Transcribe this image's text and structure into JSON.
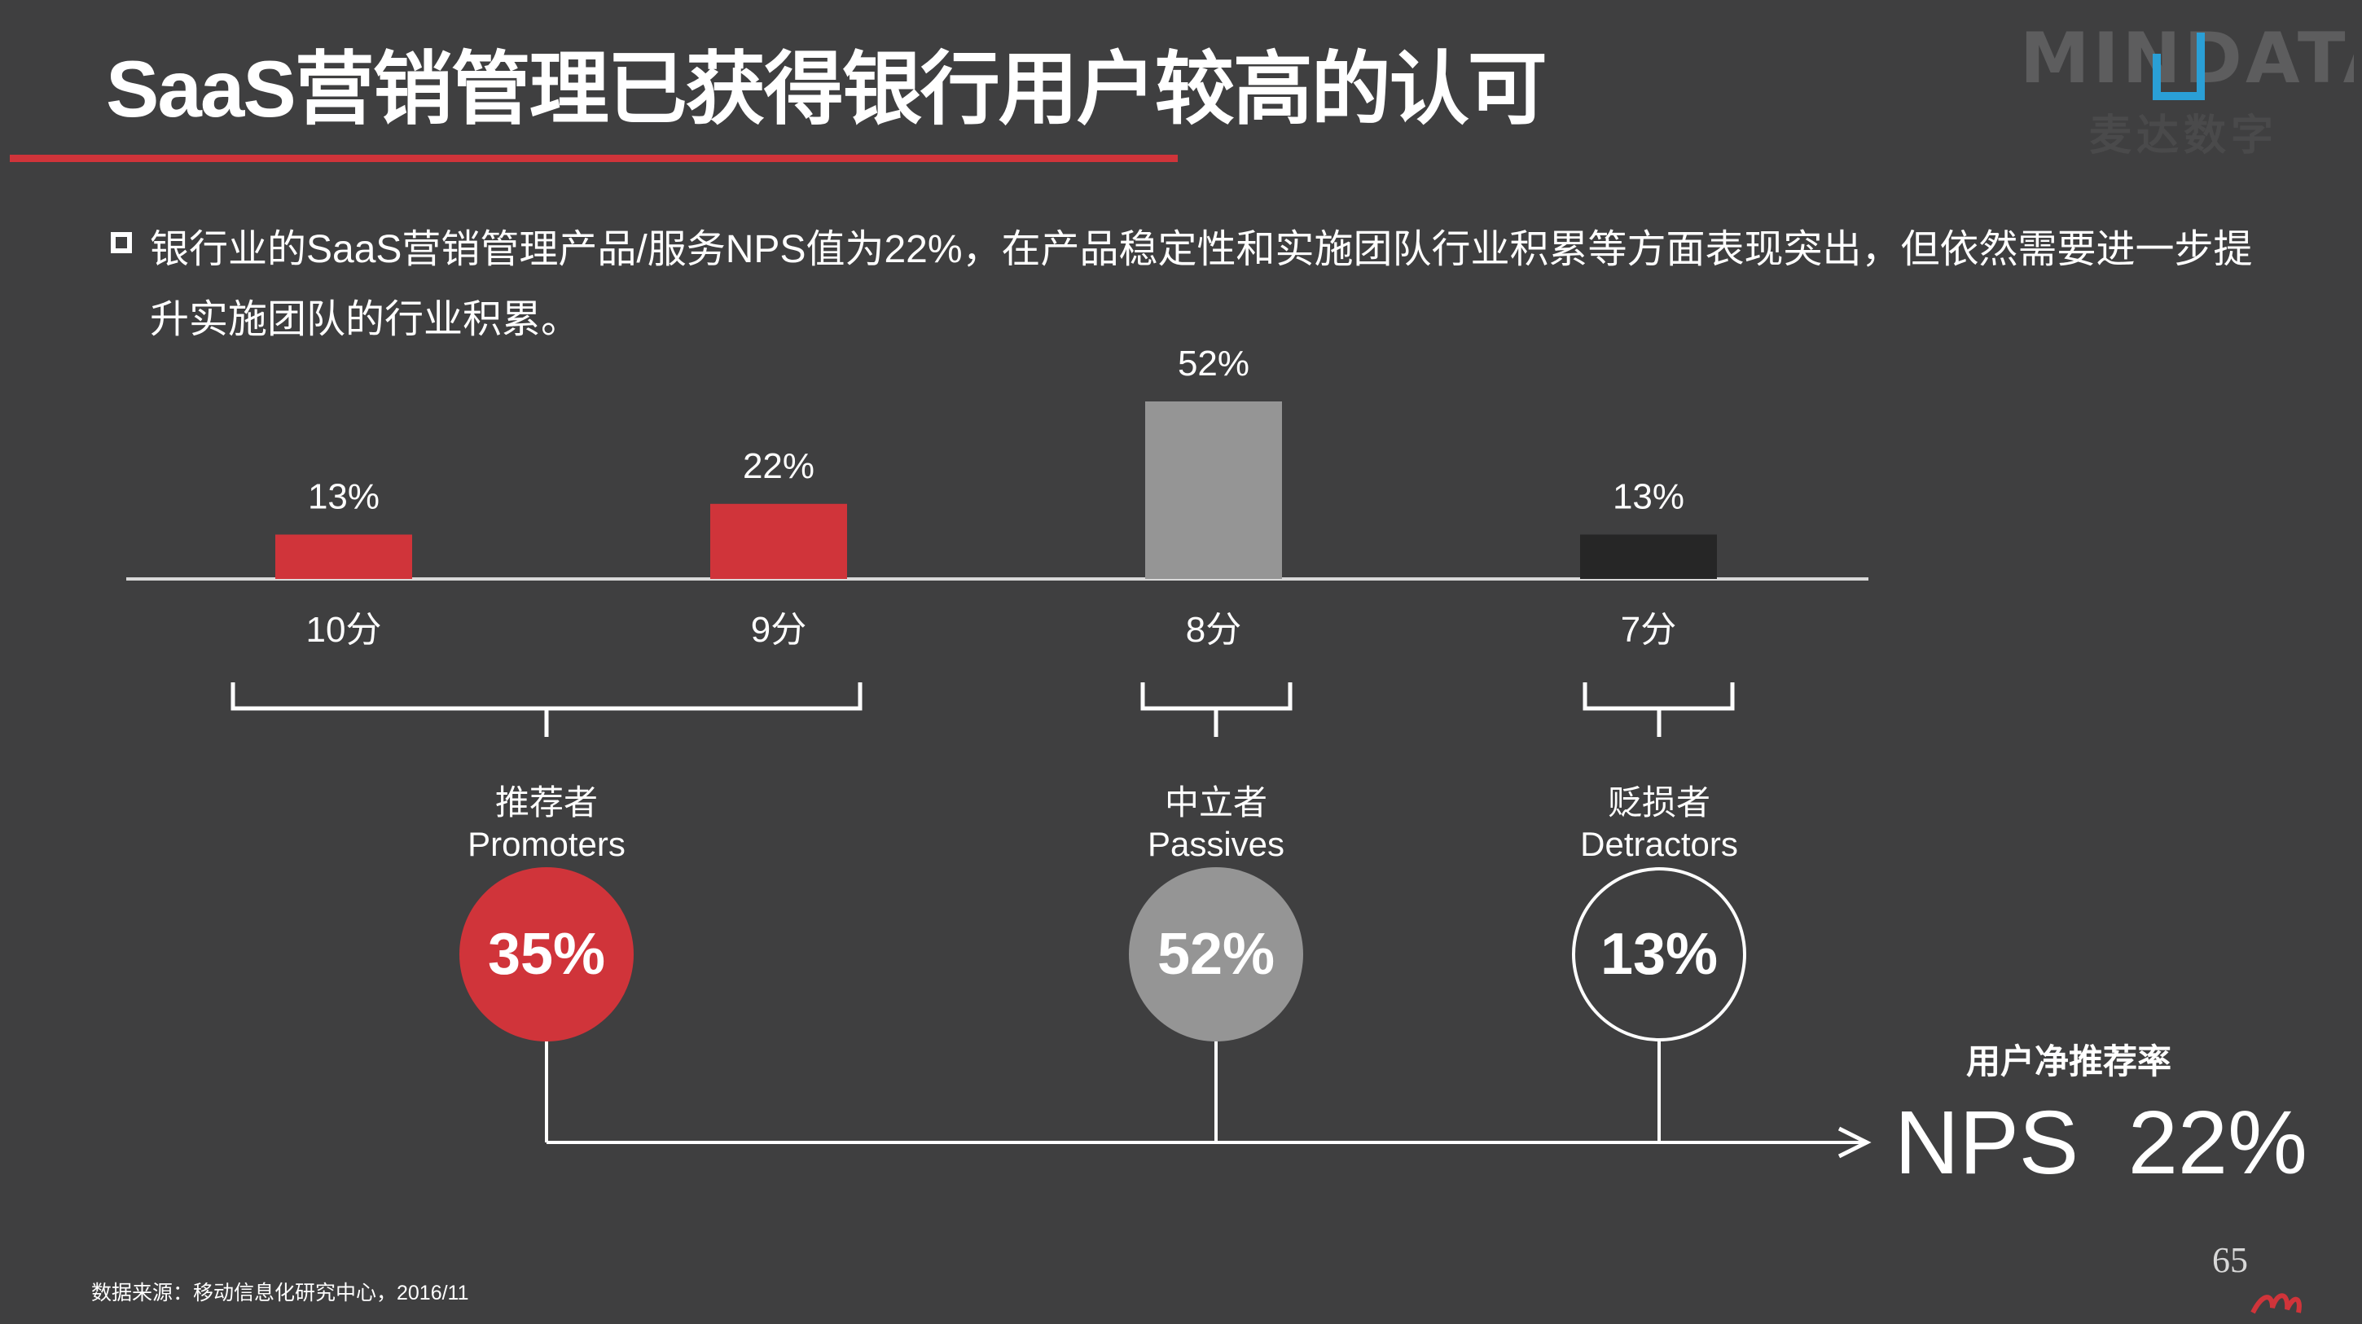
{
  "header": {
    "title": "SaaS营销管理已获得银行用户较高的认可",
    "logo_text": "MINDATA",
    "logo_subtext": "麦达数字"
  },
  "summary": {
    "bullet": "银行业的SaaS营销管理产品/服务NPS值为22%，在产品稳定性和实施团队行业积累等方面表现突出，但依然需要进一步提升实施团队的行业积累。"
  },
  "chart_data": {
    "type": "bar",
    "categories": [
      "10分",
      "9分",
      "8分",
      "7分"
    ],
    "values": [
      13,
      22,
      52,
      13
    ],
    "value_labels": [
      "13%",
      "22%",
      "52%",
      "13%"
    ],
    "bar_colors": [
      "#d0343a",
      "#d0343a",
      "#959595",
      "#262626"
    ],
    "ylim": [
      0,
      52
    ],
    "xlabel": "",
    "ylabel": ""
  },
  "groups": [
    {
      "label_cn": "推荐者",
      "label_en": "Promoters",
      "value": "35%",
      "fill": "#d0343a",
      "outline": false
    },
    {
      "label_cn": "中立者",
      "label_en": "Passives",
      "value": "52%",
      "fill": "#959595",
      "outline": false
    },
    {
      "label_cn": "贬损者",
      "label_en": "Detractors",
      "value": "13%",
      "fill": "#3f3f40",
      "outline": true
    }
  ],
  "nps": {
    "caption": "用户净推荐率",
    "result": "NPS 22%"
  },
  "footer": {
    "source": "数据来源：移动信息化研究中心，2016/11",
    "page_number": "65"
  },
  "colors": {
    "background": "#3f3f40",
    "accent_red": "#d0343a",
    "passive_gray": "#959595",
    "detractor_dark": "#262626",
    "logo_blue": "#2a9fd6"
  }
}
